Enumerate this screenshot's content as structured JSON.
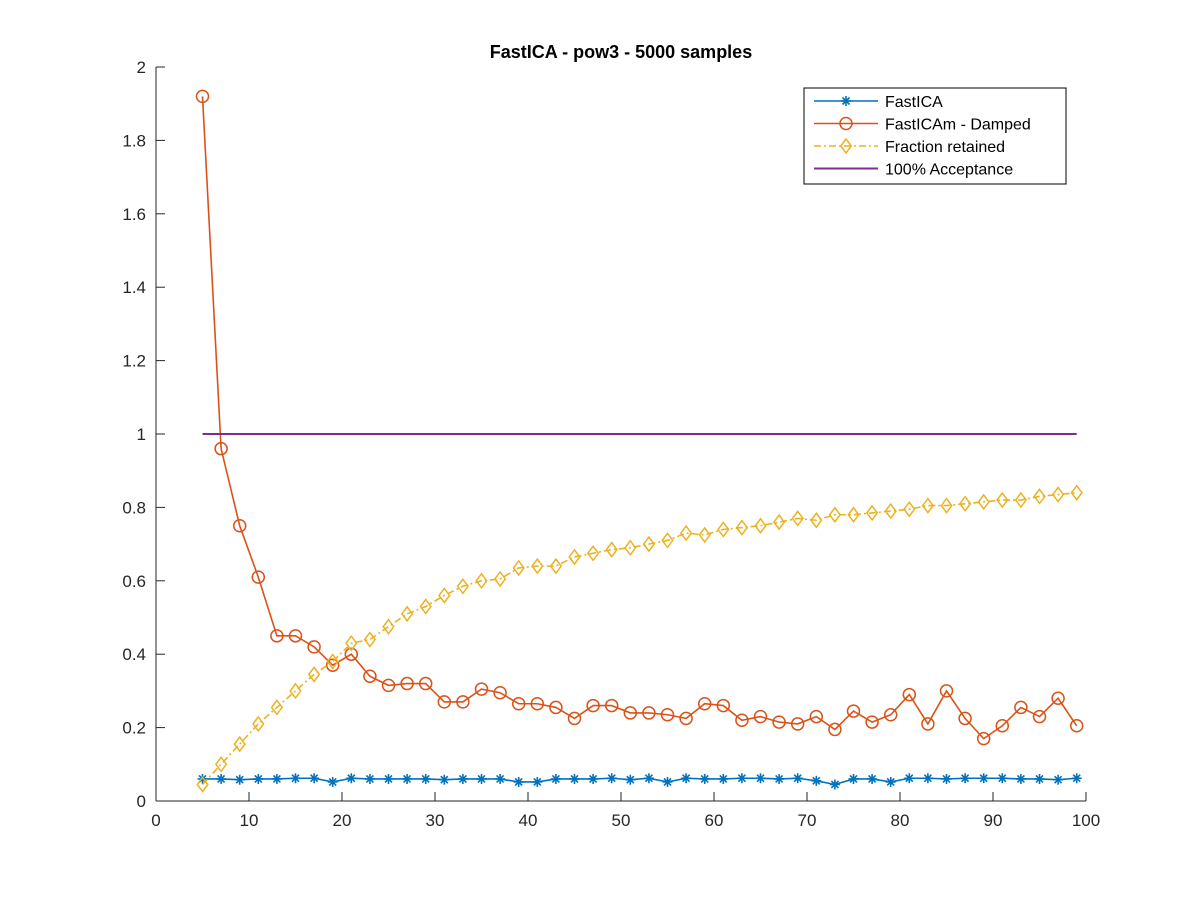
{
  "chart_data": {
    "type": "line",
    "title": "FastICA - pow3 - 5000 samples",
    "xlabel": "",
    "ylabel": "",
    "xlim": [
      0,
      100
    ],
    "ylim": [
      0,
      2
    ],
    "xticks": [
      0,
      10,
      20,
      30,
      40,
      50,
      60,
      70,
      80,
      90,
      100
    ],
    "yticks": [
      0,
      0.2,
      0.4,
      0.6,
      0.8,
      1,
      1.2,
      1.4,
      1.6,
      1.8,
      2
    ],
    "xtick_labels": [
      "0",
      "10",
      "20",
      "30",
      "40",
      "50",
      "60",
      "70",
      "80",
      "90",
      "100"
    ],
    "ytick_labels": [
      "0",
      "0.2",
      "0.4",
      "0.6",
      "0.8",
      "1",
      "1.2",
      "1.4",
      "1.6",
      "1.8",
      "2"
    ],
    "legend_position": "top-right",
    "grid": false,
    "x": [
      5,
      7,
      9,
      11,
      13,
      15,
      17,
      19,
      21,
      23,
      25,
      27,
      29,
      31,
      33,
      35,
      37,
      39,
      41,
      43,
      45,
      47,
      49,
      51,
      53,
      55,
      57,
      59,
      61,
      63,
      65,
      67,
      69,
      71,
      73,
      75,
      77,
      79,
      81,
      83,
      85,
      87,
      89,
      91,
      93,
      95,
      97,
      99
    ],
    "series": [
      {
        "name": "FastICA",
        "color": "#0072BD",
        "marker": "star",
        "line_style": "solid",
        "values": [
          0.06,
          0.06,
          0.058,
          0.06,
          0.06,
          0.062,
          0.062,
          0.052,
          0.062,
          0.06,
          0.06,
          0.06,
          0.06,
          0.058,
          0.06,
          0.06,
          0.06,
          0.052,
          0.052,
          0.06,
          0.06,
          0.06,
          0.062,
          0.058,
          0.062,
          0.052,
          0.062,
          0.06,
          0.06,
          0.062,
          0.062,
          0.06,
          0.062,
          0.055,
          0.045,
          0.06,
          0.06,
          0.052,
          0.062,
          0.062,
          0.06,
          0.062,
          0.062,
          0.062,
          0.06,
          0.06,
          0.058,
          0.062
        ]
      },
      {
        "name": "FastICAm - Damped",
        "color": "#D95319",
        "marker": "circle",
        "line_style": "solid",
        "values": [
          1.92,
          0.96,
          0.75,
          0.61,
          0.45,
          0.45,
          0.42,
          0.37,
          0.4,
          0.34,
          0.315,
          0.32,
          0.32,
          0.27,
          0.27,
          0.305,
          0.295,
          0.265,
          0.265,
          0.255,
          0.225,
          0.26,
          0.26,
          0.24,
          0.24,
          0.235,
          0.225,
          0.265,
          0.26,
          0.22,
          0.23,
          0.215,
          0.21,
          0.23,
          0.195,
          0.245,
          0.215,
          0.235,
          0.29,
          0.21,
          0.3,
          0.225,
          0.17,
          0.205,
          0.255,
          0.23,
          0.28,
          0.205
        ]
      },
      {
        "name": "Fraction retained",
        "color": "#EDB120",
        "marker": "diamond",
        "line_style": "dashdot",
        "values": [
          0.045,
          0.1,
          0.155,
          0.21,
          0.255,
          0.3,
          0.345,
          0.38,
          0.43,
          0.44,
          0.475,
          0.51,
          0.53,
          0.56,
          0.585,
          0.6,
          0.605,
          0.635,
          0.64,
          0.64,
          0.665,
          0.675,
          0.685,
          0.69,
          0.7,
          0.71,
          0.73,
          0.725,
          0.74,
          0.745,
          0.75,
          0.76,
          0.77,
          0.765,
          0.78,
          0.78,
          0.785,
          0.79,
          0.795,
          0.805,
          0.805,
          0.81,
          0.815,
          0.82,
          0.82,
          0.83,
          0.835,
          0.84
        ]
      },
      {
        "name": "100% Acceptance",
        "color": "#7E2F8E",
        "marker": "none",
        "line_style": "solid",
        "x": [
          5,
          99
        ],
        "values": [
          1,
          1
        ]
      }
    ]
  }
}
